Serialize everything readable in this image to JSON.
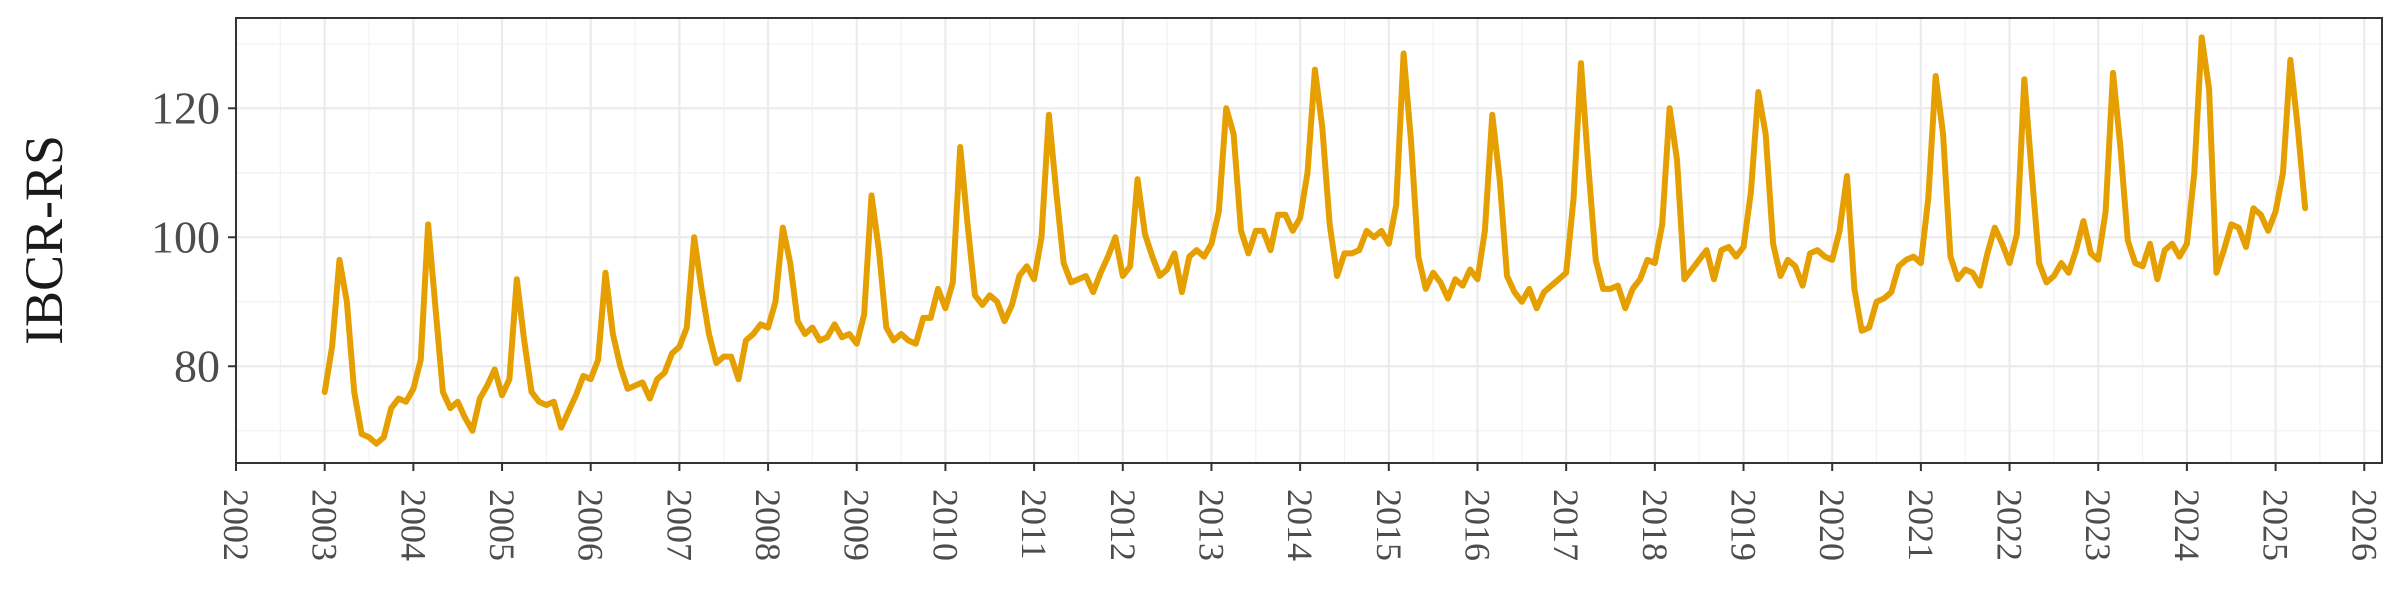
{
  "chart_data": {
    "type": "line",
    "title": "",
    "xlabel": "",
    "ylabel": "IBCR-RS",
    "xlim": [
      2002,
      2026.2
    ],
    "ylim": [
      65,
      134
    ],
    "x_ticks": [
      "2002",
      "2003",
      "2004",
      "2005",
      "2006",
      "2007",
      "2008",
      "2009",
      "2010",
      "2011",
      "2012",
      "2013",
      "2014",
      "2015",
      "2016",
      "2017",
      "2018",
      "2019",
      "2020",
      "2021",
      "2022",
      "2023",
      "2024",
      "2025",
      "2026"
    ],
    "y_ticks": [
      "80",
      "100",
      "120"
    ],
    "grid": true,
    "legend": "none",
    "line_color": "#E69F00",
    "x_start": "2003-01",
    "frequency": "monthly",
    "series": [
      {
        "values": [
          76.0,
          83.0,
          96.5,
          90.0,
          76.0,
          69.5,
          69.0,
          68.0,
          69.0,
          73.5,
          75.0,
          74.5,
          76.5,
          81.0,
          102.0,
          89.0,
          76.0,
          73.5,
          74.5,
          72.0,
          70.0,
          75.0,
          77.0,
          79.5,
          75.5,
          78.0,
          93.5,
          84.0,
          76.0,
          74.5,
          74.0,
          74.5,
          70.5,
          73.0,
          75.5,
          78.5,
          78.0,
          81.0,
          94.5,
          85.0,
          80.0,
          76.5,
          77.0,
          77.5,
          75.0,
          78.0,
          79.0,
          82.0,
          83.0,
          86.0,
          100.0,
          92.0,
          85.0,
          80.5,
          81.5,
          81.5,
          78.0,
          84.0,
          85.0,
          86.5,
          86.0,
          90.0,
          101.5,
          96.0,
          87.0,
          85.0,
          86.0,
          84.0,
          84.5,
          86.5,
          84.5,
          85.0,
          83.5,
          88.0,
          106.5,
          98.0,
          86.0,
          84.0,
          85.0,
          84.0,
          83.5,
          87.5,
          87.5,
          92.0,
          89.0,
          93.0,
          114.0,
          102.0,
          91.0,
          89.5,
          91.0,
          90.0,
          87.0,
          89.5,
          94.0,
          95.5,
          93.5,
          100.0,
          119.0,
          107.0,
          96.0,
          93.0,
          93.5,
          94.0,
          91.5,
          94.5,
          97.0,
          100.0,
          94.0,
          95.5,
          109.0,
          100.5,
          97.0,
          94.0,
          95.0,
          97.5,
          91.5,
          97.0,
          98.0,
          97.0,
          99.0,
          104.0,
          120.0,
          116.0,
          101.0,
          97.5,
          101.0,
          101.0,
          98.0,
          103.5,
          103.5,
          101.0,
          103.0,
          110.0,
          126.0,
          117.0,
          102.0,
          94.0,
          97.5,
          97.5,
          98.0,
          101.0,
          100.0,
          101.0,
          99.0,
          105.0,
          128.5,
          115.0,
          97.0,
          92.0,
          94.5,
          93.0,
          90.5,
          93.5,
          92.5,
          95.0,
          93.5,
          101.0,
          119.0,
          109.0,
          94.0,
          91.5,
          90.0,
          92.0,
          89.0,
          91.5,
          92.5,
          93.5,
          94.5,
          106.0,
          127.0,
          111.0,
          96.5,
          92.0,
          92.0,
          92.5,
          89.0,
          92.0,
          93.5,
          96.5,
          96.0,
          102.0,
          120.0,
          112.0,
          93.5,
          95.0,
          96.5,
          98.0,
          93.5,
          98.0,
          98.5,
          97.0,
          98.5,
          107.0,
          122.5,
          116.0,
          99.0,
          94.0,
          96.5,
          95.5,
          92.5,
          97.5,
          98.0,
          97.0,
          96.5,
          101.0,
          109.5,
          92.0,
          85.5,
          86.0,
          90.0,
          90.5,
          91.5,
          95.5,
          96.5,
          97.0,
          96.0,
          106.0,
          125.0,
          116.0,
          97.0,
          93.5,
          95.0,
          94.5,
          92.5,
          97.5,
          101.5,
          99.0,
          96.0,
          100.5,
          124.5,
          110.0,
          96.0,
          93.0,
          94.0,
          96.0,
          94.5,
          98.0,
          102.5,
          97.5,
          96.5,
          104.0,
          125.5,
          114.0,
          99.5,
          96.0,
          95.5,
          99.0,
          93.5,
          98.0,
          99.0,
          97.0,
          99.0,
          110.0,
          131.0,
          123.0,
          94.5,
          98.0,
          102.0,
          101.5,
          98.5,
          104.5,
          103.5,
          101.0,
          104.0,
          110.0,
          127.5,
          117.0,
          104.5
        ]
      }
    ]
  }
}
